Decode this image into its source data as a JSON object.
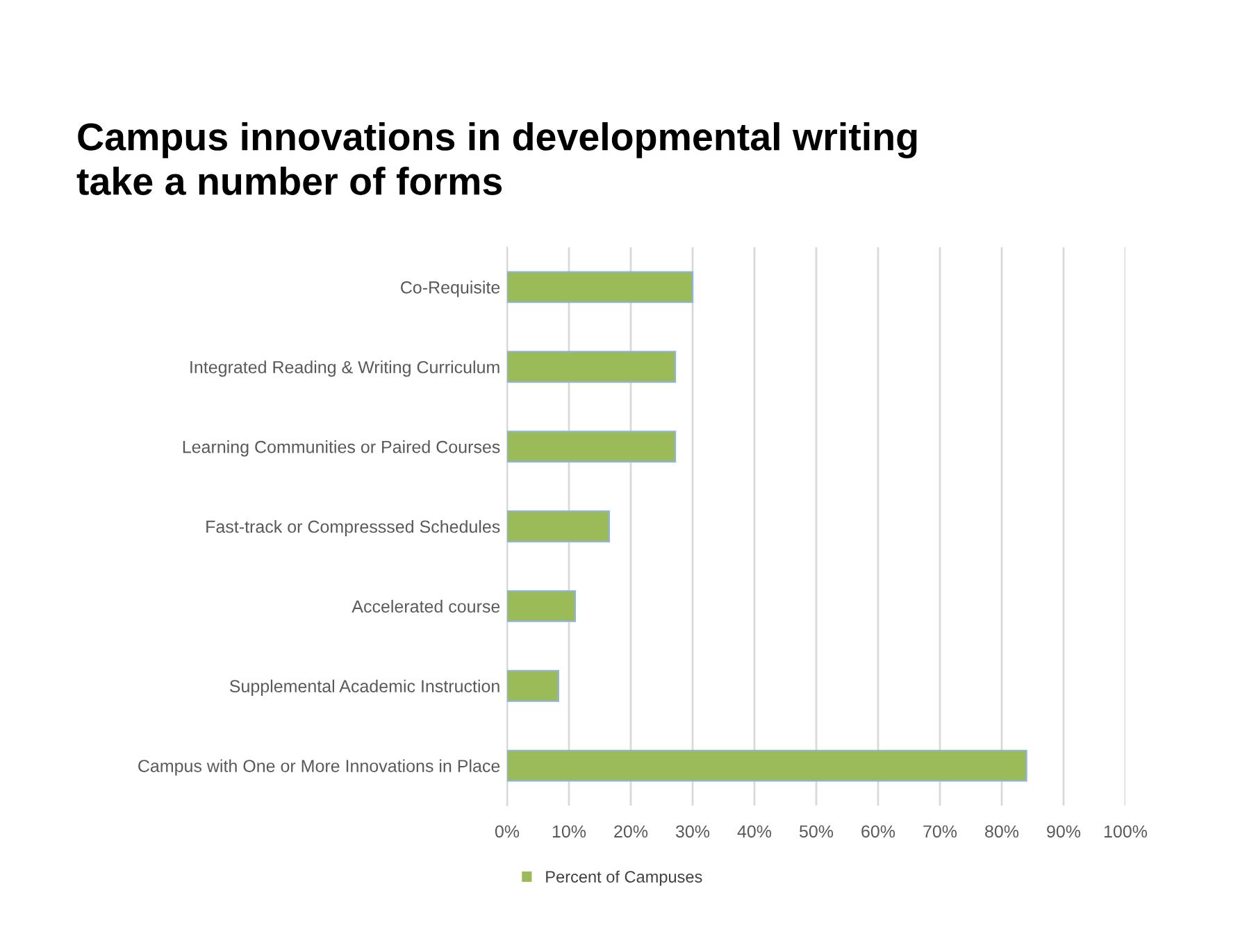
{
  "chart_data": {
    "type": "bar",
    "orientation": "horizontal",
    "title": "Campus innovations in developmental writing\ntake a number of forms",
    "categories": [
      "Co-Requisite",
      "Integrated Reading & Writing Curriculum",
      "Learning Communities or Paired Courses",
      "Fast-track or Compresssed Schedules",
      "Accelerated course",
      "Supplemental Academic Instruction",
      "Campus with One or More Innovations in Place"
    ],
    "series": [
      {
        "name": "Percent of Campuses",
        "color": "#9bbb59",
        "values": [
          30,
          27.2,
          27.2,
          16.5,
          11,
          8.3,
          84
        ]
      }
    ],
    "xlim": [
      0,
      100
    ],
    "xticks": [
      {
        "value": 0,
        "label": "0%"
      },
      {
        "value": 10,
        "label": "10%"
      },
      {
        "value": 20,
        "label": "20%"
      },
      {
        "value": 30,
        "label": "30%"
      },
      {
        "value": 40,
        "label": "40%"
      },
      {
        "value": 50,
        "label": "50%"
      },
      {
        "value": 60,
        "label": "60%"
      },
      {
        "value": 70,
        "label": "70%"
      },
      {
        "value": 80,
        "label": "80%"
      },
      {
        "value": 90,
        "label": "90%"
      },
      {
        "value": 100,
        "label": "100%"
      }
    ],
    "grid": "x",
    "legend": "bottom"
  }
}
